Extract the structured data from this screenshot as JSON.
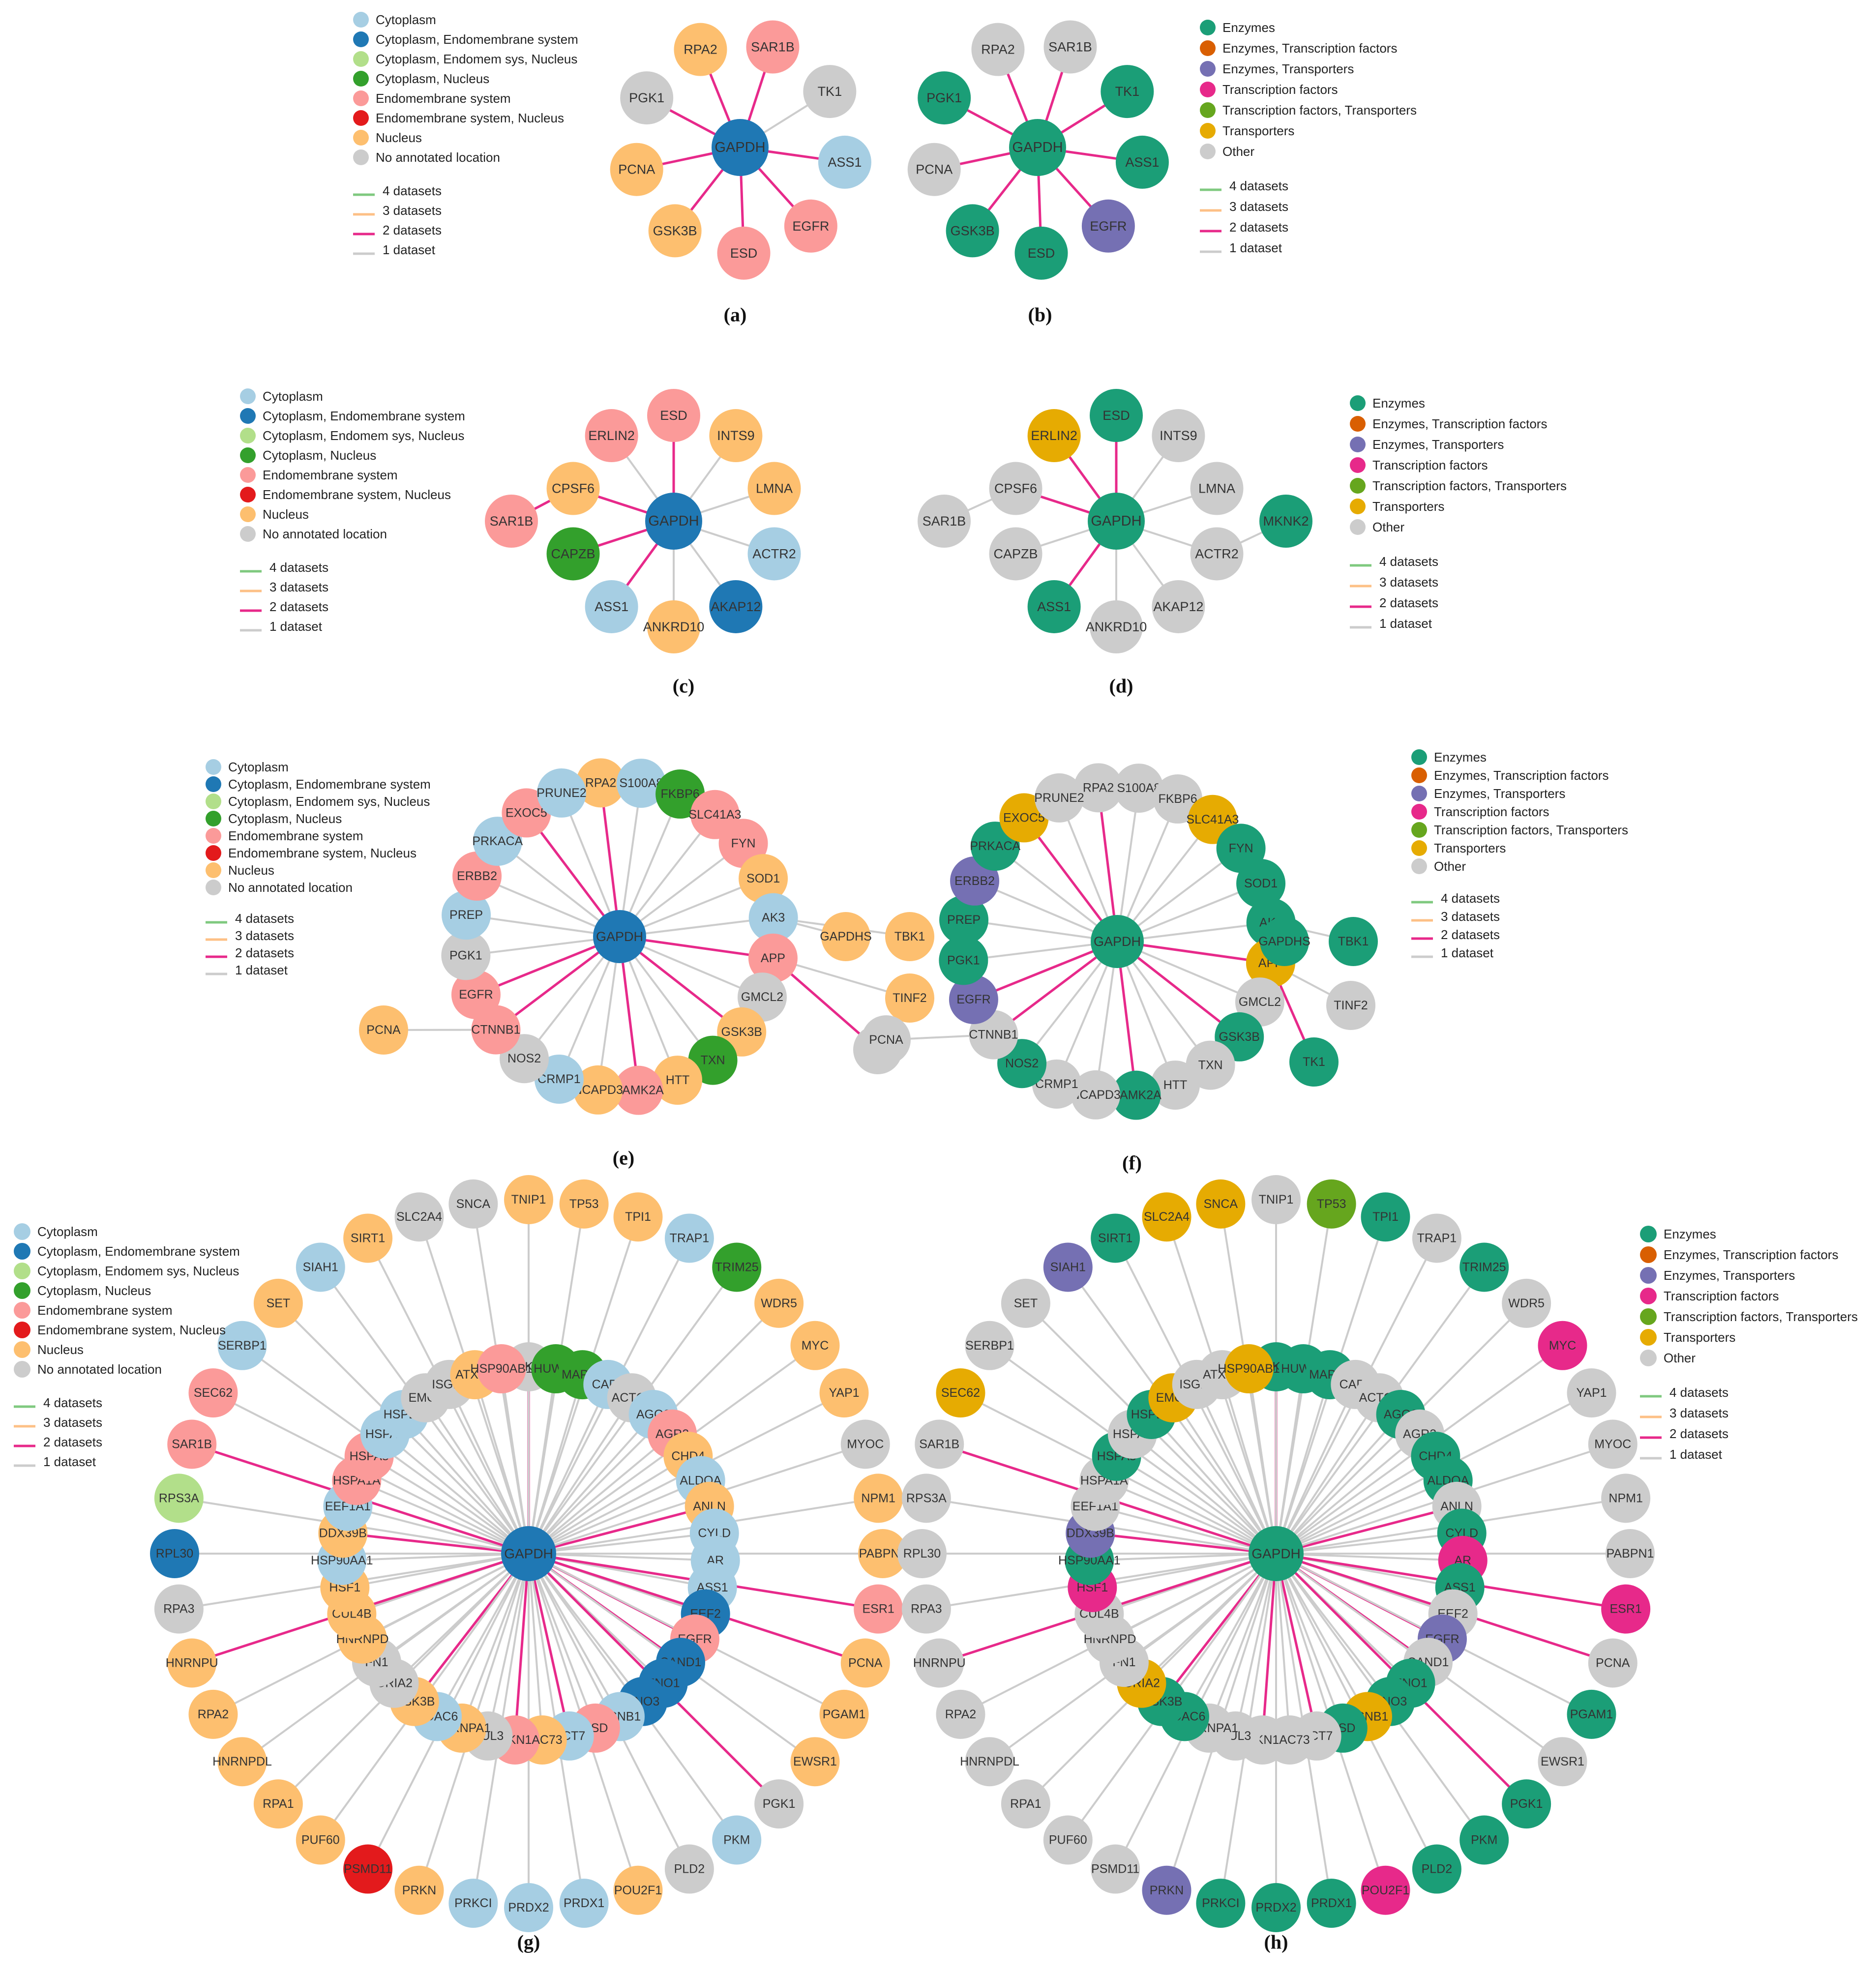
{
  "legends": {
    "location": [
      "Cytoplasm",
      "Cytoplasm, Endomembrane system",
      "Cytoplasm, Endomem sys, Nucleus",
      "Cytoplasm, Nucleus",
      "Endomembrane system",
      "Endomembrane system, Nucleus",
      "Nucleus",
      "No annotated location"
    ],
    "function": [
      "Enzymes",
      "Enzymes, Transcription factors",
      "Enzymes, Transporters",
      "Transcription factors",
      "Transcription factors, Transporters",
      "Transporters",
      "Other"
    ],
    "datasets": [
      "4 datasets",
      "3 datasets",
      "2 datasets",
      "1 dataset"
    ]
  },
  "colors": {
    "location": [
      "#a6cee3",
      "#1f78b4",
      "#b2df8a",
      "#33a02c",
      "#fb9a99",
      "#e31a1c",
      "#fdbf6f",
      "#cccccc"
    ],
    "function": [
      "#1b9e77",
      "#d95f02",
      "#7570b3",
      "#e7298a",
      "#66a61e",
      "#e6ab02",
      "#cccccc"
    ],
    "datasets": [
      "#7fc97f",
      "#fdc086",
      "#e7298a",
      "#cccccc"
    ]
  },
  "panels": [
    {
      "caption": "(a)",
      "legend": "location",
      "hub": "GAPDH",
      "hub_color": 1,
      "nodes": [
        [
          "SAR1B",
          4,
          2
        ],
        [
          "TK1",
          7,
          3
        ],
        [
          "ASS1",
          0,
          2
        ],
        [
          "EGFR",
          4,
          2
        ],
        [
          "ESD",
          4,
          2
        ],
        [
          "GSK3B",
          6,
          2
        ],
        [
          "PCNA",
          6,
          2
        ],
        [
          "PGK1",
          7,
          2
        ],
        [
          "RPA2",
          6,
          2
        ]
      ]
    },
    {
      "caption": "(b)",
      "legend": "function",
      "hub": "GAPDH",
      "hub_color": 0,
      "nodes": [
        [
          "SAR1B",
          6,
          2
        ],
        [
          "TK1",
          0,
          2
        ],
        [
          "ASS1",
          0,
          2
        ],
        [
          "EGFR",
          2,
          2
        ],
        [
          "ESD",
          0,
          2
        ],
        [
          "GSK3B",
          0,
          2
        ],
        [
          "PCNA",
          6,
          2
        ],
        [
          "PGK1",
          0,
          2
        ],
        [
          "RPA2",
          6,
          2
        ]
      ]
    },
    {
      "caption": "(c)",
      "legend": "location",
      "hub": "GAPDH",
      "hub_color": 1,
      "nodes": [
        [
          "ESD",
          4,
          2
        ],
        [
          "INTS9",
          6,
          3
        ],
        [
          "LMNA",
          6,
          3
        ],
        [
          "ACTR2",
          0,
          3
        ],
        [
          "AKAP12",
          1,
          3
        ],
        [
          "ANKRD10",
          6,
          3
        ],
        [
          "ASS1",
          0,
          2
        ],
        [
          "CAPZB",
          3,
          2
        ],
        [
          "CPSF6",
          6,
          2
        ],
        [
          "ERLIN2",
          4,
          3
        ]
      ],
      "extra": [
        [
          "SAR1B",
          4,
          2
        ]
      ]
    },
    {
      "caption": "(d)",
      "legend": "function",
      "hub": "GAPDH",
      "hub_color": 0,
      "nodes": [
        [
          "ESD",
          0,
          2
        ],
        [
          "INTS9",
          6,
          3
        ],
        [
          "LMNA",
          6,
          3
        ],
        [
          "ACTR2",
          6,
          3
        ],
        [
          "AKAP12",
          6,
          3
        ],
        [
          "ANKRD10",
          6,
          3
        ],
        [
          "ASS1",
          0,
          2
        ],
        [
          "CAPZB",
          6,
          3
        ],
        [
          "CPSF6",
          6,
          2
        ],
        [
          "ERLIN2",
          5,
          2
        ]
      ],
      "extra": [
        [
          "SAR1B",
          6,
          3
        ],
        [
          "MKNK2",
          0,
          3
        ]
      ]
    },
    {
      "caption": "(e)",
      "legend": "location",
      "hub": "GAPDH",
      "hub_color": 1,
      "nodes": [
        [
          "RPA2",
          6,
          2
        ],
        [
          "S100A8",
          0,
          3
        ],
        [
          "FKBP6",
          3,
          3
        ],
        [
          "SLC41A3",
          4,
          3
        ],
        [
          "FYN",
          4,
          3
        ],
        [
          "SOD1",
          6,
          3
        ],
        [
          "AK3",
          0,
          3
        ],
        [
          "APP",
          4,
          2
        ],
        [
          "GMCL2",
          7,
          3
        ],
        [
          "GSK3B",
          6,
          2
        ],
        [
          "TXN",
          3,
          3
        ],
        [
          "HTT",
          6,
          3
        ],
        [
          "CAMK2A",
          4,
          2
        ],
        [
          "NCAPD3",
          6,
          3
        ],
        [
          "CRMP1",
          0,
          3
        ],
        [
          "NOS2",
          7,
          3
        ],
        [
          "CTNNB1",
          4,
          2
        ],
        [
          "EGFR",
          4,
          2
        ],
        [
          "PGK1",
          7,
          3
        ],
        [
          "PREP",
          0,
          3
        ],
        [
          "ERBB2",
          4,
          3
        ],
        [
          "PRKACA",
          0,
          3
        ],
        [
          "EXOC5",
          4,
          2
        ],
        [
          "PRUNE2",
          0,
          3
        ]
      ],
      "extra": [
        [
          "GAPDHS",
          6,
          3
        ],
        [
          "TBK1",
          6,
          3
        ],
        [
          "TINF2",
          6,
          3
        ],
        [
          "TK1",
          7,
          2
        ],
        [
          "PCNA",
          6,
          3
        ]
      ]
    },
    {
      "caption": "(f)",
      "legend": "function",
      "hub": "GAPDH",
      "hub_color": 0,
      "nodes": [
        [
          "RPA2",
          6,
          2
        ],
        [
          "S100A8",
          6,
          3
        ],
        [
          "FKBP6",
          6,
          3
        ],
        [
          "SLC41A3",
          5,
          3
        ],
        [
          "FYN",
          0,
          3
        ],
        [
          "SOD1",
          0,
          3
        ],
        [
          "AK3",
          0,
          3
        ],
        [
          "APP",
          5,
          2
        ],
        [
          "GMCL2",
          6,
          3
        ],
        [
          "GSK3B",
          0,
          2
        ],
        [
          "TXN",
          6,
          3
        ],
        [
          "HTT",
          6,
          3
        ],
        [
          "CAMK2A",
          0,
          2
        ],
        [
          "NCAPD3",
          6,
          3
        ],
        [
          "CRMP1",
          6,
          3
        ],
        [
          "NOS2",
          0,
          3
        ],
        [
          "CTNNB1",
          6,
          2
        ],
        [
          "EGFR",
          2,
          2
        ],
        [
          "PGK1",
          0,
          3
        ],
        [
          "PREP",
          0,
          3
        ],
        [
          "ERBB2",
          2,
          3
        ],
        [
          "PRKACA",
          0,
          3
        ],
        [
          "EXOC5",
          5,
          2
        ],
        [
          "PRUNE2",
          6,
          3
        ]
      ],
      "extra": [
        [
          "GAPDHS",
          0,
          3
        ],
        [
          "TBK1",
          0,
          3
        ],
        [
          "TINF2",
          6,
          3
        ],
        [
          "TK1",
          0,
          2
        ],
        [
          "PCNA",
          6,
          3
        ]
      ]
    },
    {
      "caption": "(g)",
      "legend": "location",
      "hub": "GAPDH",
      "hub_color": 1,
      "inner": [
        [
          "TK1",
          7,
          2
        ],
        [
          "HUWE1",
          3,
          3
        ],
        [
          "MAPK7",
          3,
          3
        ],
        [
          "CAP1",
          0,
          3
        ],
        [
          "ACTC1",
          7,
          3
        ],
        [
          "AGO2",
          0,
          3
        ],
        [
          "AGR2",
          4,
          3
        ],
        [
          "CHD4",
          6,
          3
        ],
        [
          "ALDOA",
          0,
          3
        ],
        [
          "ANLN",
          6,
          2
        ],
        [
          "CYLD",
          0,
          3
        ],
        [
          "AR",
          0,
          3
        ],
        [
          "ASS1",
          0,
          3
        ],
        [
          "EEF2",
          1,
          3
        ],
        [
          "EGFR",
          4,
          2
        ],
        [
          "CAND1",
          1,
          2
        ],
        [
          "ENO1",
          1,
          3
        ],
        [
          "ENO3",
          1,
          3
        ],
        [
          "CCNB1",
          0,
          3
        ],
        [
          "ESD",
          4,
          3
        ],
        [
          "CCT7",
          0,
          2
        ],
        [
          "CDC73",
          6,
          3
        ],
        [
          "CDKN1A",
          4,
          2
        ],
        [
          "CUL3",
          7,
          3
        ],
        [
          "HNRNPA1",
          6,
          3
        ],
        [
          "HDAC6",
          0,
          3
        ],
        [
          "GSK3B",
          6,
          2
        ],
        [
          "GRIA2",
          7,
          3
        ],
        [
          "FN1",
          7,
          3
        ],
        [
          "HNRNPD",
          6,
          3
        ],
        [
          "CUL4B",
          6,
          3
        ],
        [
          "HSF1",
          6,
          3
        ],
        [
          "HSP90AA1",
          0,
          3
        ],
        [
          "DDX39B",
          6,
          2
        ],
        [
          "EEF1A1",
          0,
          3
        ],
        [
          "HSPA1A",
          4,
          3
        ],
        [
          "HSPA8",
          4,
          3
        ],
        [
          "HSPA9",
          0,
          3
        ],
        [
          "HSPD1",
          0,
          3
        ],
        [
          "EMC2",
          7,
          3
        ],
        [
          "ISG15",
          7,
          3
        ],
        [
          "ATXN1",
          6,
          3
        ],
        [
          "HSP90AB1",
          4,
          3
        ]
      ],
      "outer": [
        [
          "TNIP1",
          6,
          3
        ],
        [
          "TP53",
          6,
          3
        ],
        [
          "TPI1",
          6,
          3
        ],
        [
          "TRAP1",
          0,
          3
        ],
        [
          "TRIM25",
          3,
          3
        ],
        [
          "WDR5",
          6,
          3
        ],
        [
          "MYC",
          6,
          3
        ],
        [
          "YAP1",
          6,
          3
        ],
        [
          "MYOC",
          7,
          3
        ],
        [
          "NPM1",
          6,
          3
        ],
        [
          "PABPN1",
          6,
          3
        ],
        [
          "ESR1",
          4,
          2
        ],
        [
          "PCNA",
          6,
          2
        ],
        [
          "PGAM1",
          6,
          3
        ],
        [
          "EWSR1",
          6,
          3
        ],
        [
          "PGK1",
          7,
          2
        ],
        [
          "PKM",
          0,
          3
        ],
        [
          "PLD2",
          7,
          3
        ],
        [
          "POU2F1",
          6,
          3
        ],
        [
          "PRDX1",
          0,
          3
        ],
        [
          "PRDX2",
          0,
          3
        ],
        [
          "PRKCI",
          0,
          3
        ],
        [
          "PRKN",
          6,
          3
        ],
        [
          "PSMD11",
          5,
          3
        ],
        [
          "PUF60",
          6,
          3
        ],
        [
          "RPA1",
          6,
          3
        ],
        [
          "HNRNPDL",
          6,
          3
        ],
        [
          "RPA2",
          6,
          3
        ],
        [
          "HNRNPU",
          6,
          2
        ],
        [
          "RPA3",
          7,
          3
        ],
        [
          "RPL30",
          1,
          3
        ],
        [
          "RPS3A",
          2,
          3
        ],
        [
          "SAR1B",
          4,
          2
        ],
        [
          "SEC62",
          4,
          3
        ],
        [
          "SERBP1",
          0,
          3
        ],
        [
          "SET",
          6,
          3
        ],
        [
          "SIAH1",
          0,
          3
        ],
        [
          "SIRT1",
          6,
          3
        ],
        [
          "SLC2A4",
          7,
          3
        ],
        [
          "SNCA",
          7,
          3
        ]
      ]
    },
    {
      "caption": "(h)",
      "legend": "function",
      "hub": "GAPDH",
      "hub_color": 0,
      "inner": [
        [
          "TK1",
          0,
          2
        ],
        [
          "HUWE1",
          0,
          3
        ],
        [
          "MAPK7",
          0,
          3
        ],
        [
          "CAP1",
          6,
          3
        ],
        [
          "ACTC1",
          6,
          3
        ],
        [
          "AGO2",
          0,
          3
        ],
        [
          "AGR2",
          6,
          3
        ],
        [
          "CHD4",
          0,
          3
        ],
        [
          "ALDOA",
          0,
          3
        ],
        [
          "ANLN",
          6,
          2
        ],
        [
          "CYLD",
          0,
          3
        ],
        [
          "AR",
          3,
          3
        ],
        [
          "ASS1",
          0,
          3
        ],
        [
          "EEF2",
          6,
          3
        ],
        [
          "EGFR",
          2,
          2
        ],
        [
          "CAND1",
          6,
          2
        ],
        [
          "ENO1",
          0,
          3
        ],
        [
          "ENO3",
          0,
          3
        ],
        [
          "CCNB1",
          5,
          3
        ],
        [
          "ESD",
          0,
          3
        ],
        [
          "CCT7",
          6,
          2
        ],
        [
          "CDC73",
          6,
          3
        ],
        [
          "CDKN1A",
          6,
          2
        ],
        [
          "CUL3",
          6,
          3
        ],
        [
          "HNRNPA1",
          6,
          3
        ],
        [
          "HDAC6",
          0,
          3
        ],
        [
          "GSK3B",
          0,
          2
        ],
        [
          "GRIA2",
          5,
          3
        ],
        [
          "FN1",
          6,
          3
        ],
        [
          "HNRNPD",
          6,
          3
        ],
        [
          "CUL4B",
          6,
          3
        ],
        [
          "HSF1",
          3,
          3
        ],
        [
          "HSP90AA1",
          0,
          3
        ],
        [
          "DDX39B",
          2,
          2
        ],
        [
          "EEF1A1",
          6,
          3
        ],
        [
          "HSPA1A",
          6,
          3
        ],
        [
          "HSPA8",
          0,
          3
        ],
        [
          "HSPA9",
          6,
          3
        ],
        [
          "HSPD1",
          0,
          3
        ],
        [
          "EMC2",
          5,
          3
        ],
        [
          "ISG15",
          6,
          3
        ],
        [
          "ATXN1",
          6,
          3
        ],
        [
          "HSP90AB1",
          5,
          3
        ]
      ],
      "outer": [
        [
          "TNIP1",
          6,
          3
        ],
        [
          "TP53",
          4,
          3
        ],
        [
          "TPI1",
          0,
          3
        ],
        [
          "TRAP1",
          6,
          3
        ],
        [
          "TRIM25",
          0,
          3
        ],
        [
          "WDR5",
          6,
          3
        ],
        [
          "MYC",
          3,
          3
        ],
        [
          "YAP1",
          6,
          3
        ],
        [
          "MYOC",
          6,
          3
        ],
        [
          "NPM1",
          6,
          3
        ],
        [
          "PABPN1",
          6,
          3
        ],
        [
          "ESR1",
          3,
          2
        ],
        [
          "PCNA",
          6,
          2
        ],
        [
          "PGAM1",
          0,
          3
        ],
        [
          "EWSR1",
          6,
          3
        ],
        [
          "PGK1",
          0,
          2
        ],
        [
          "PKM",
          0,
          3
        ],
        [
          "PLD2",
          0,
          3
        ],
        [
          "POU2F1",
          3,
          3
        ],
        [
          "PRDX1",
          0,
          3
        ],
        [
          "PRDX2",
          0,
          3
        ],
        [
          "PRKCI",
          0,
          3
        ],
        [
          "PRKN",
          2,
          3
        ],
        [
          "PSMD11",
          6,
          3
        ],
        [
          "PUF60",
          6,
          3
        ],
        [
          "RPA1",
          6,
          3
        ],
        [
          "HNRNPDL",
          6,
          3
        ],
        [
          "RPA2",
          6,
          3
        ],
        [
          "HNRNPU",
          6,
          2
        ],
        [
          "RPA3",
          6,
          3
        ],
        [
          "RPL30",
          6,
          3
        ],
        [
          "RPS3A",
          6,
          3
        ],
        [
          "SAR1B",
          6,
          2
        ],
        [
          "SEC62",
          5,
          3
        ],
        [
          "SERBP1",
          6,
          3
        ],
        [
          "SET",
          6,
          3
        ],
        [
          "SIAH1",
          2,
          3
        ],
        [
          "SIRT1",
          0,
          3
        ],
        [
          "SLC2A4",
          5,
          3
        ],
        [
          "SNCA",
          5,
          3
        ]
      ]
    }
  ]
}
